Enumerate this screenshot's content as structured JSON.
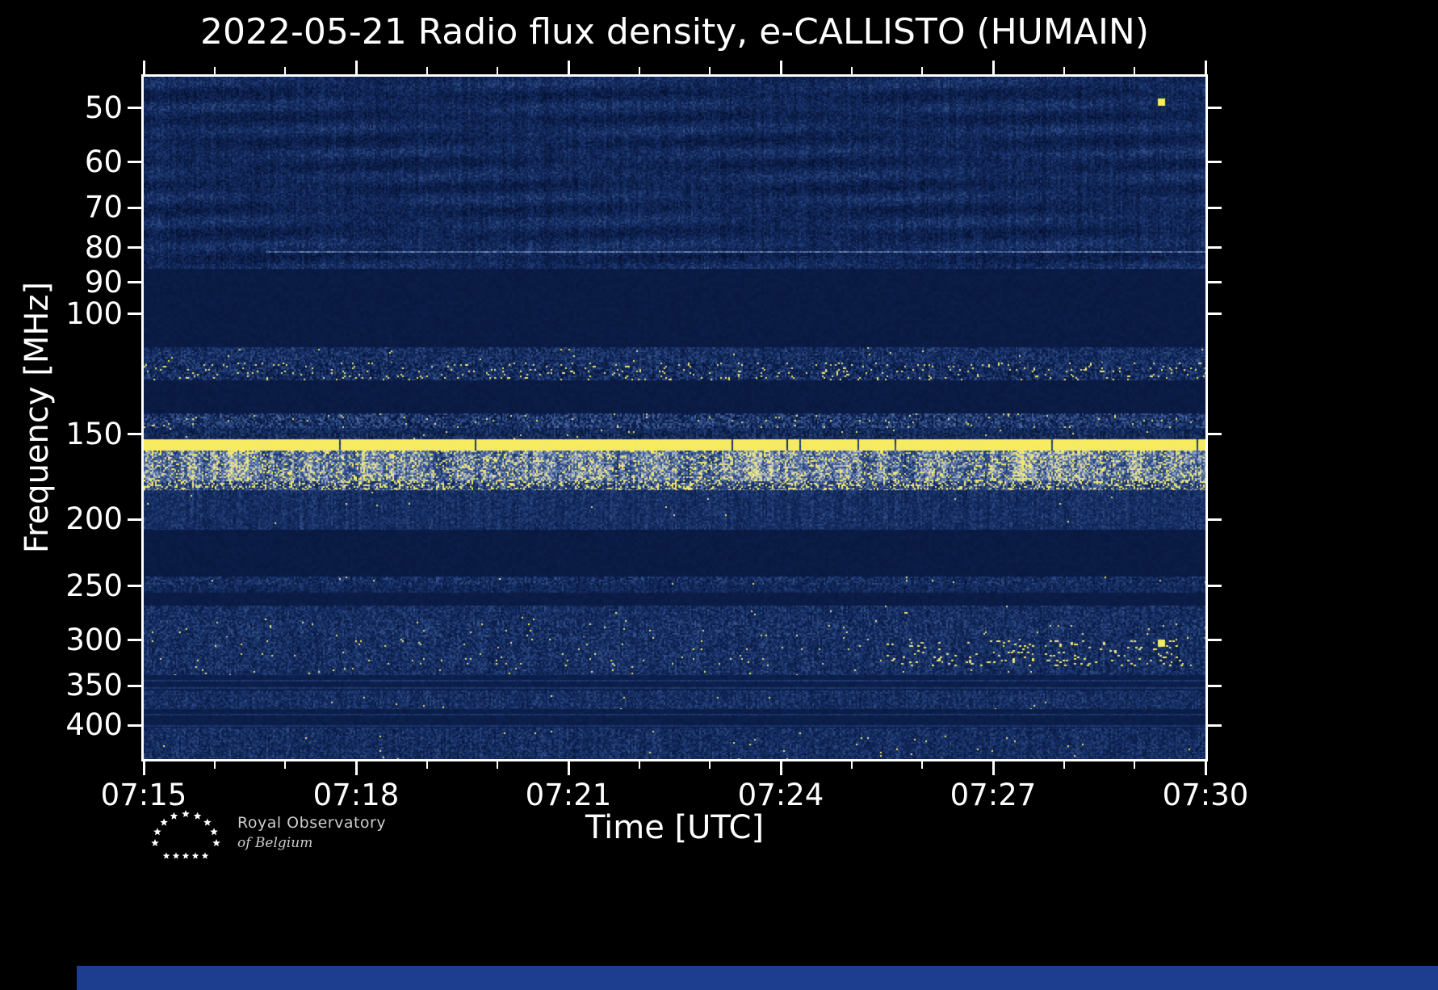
{
  "title": "2022-05-21 Radio flux density, e-CALLISTO (HUMAIN)",
  "axes": {
    "xlabel": "Time [UTC]",
    "ylabel": "Frequency [MHz]"
  },
  "logo": {
    "line1": "Royal Observatory",
    "line2": "of Belgium"
  },
  "colors": {
    "background": "#000000",
    "frame": "#ffffff",
    "text": "#ffffff",
    "plot_base_blue": "#0a1f4e",
    "signal_yellow": "#f6e85c",
    "bottom_strip_blue": "#1d3e8f",
    "logo_text_gray": "#cccccc"
  },
  "chart_data": {
    "type": "heatmap",
    "title": "2022-05-21 Radio flux density, e-CALLISTO (HUMAIN)",
    "xlabel": "Time [UTC]",
    "ylabel": "Frequency [MHz]",
    "x_ticks": [
      "07:15",
      "07:18",
      "07:21",
      "07:24",
      "07:27",
      "07:30"
    ],
    "x_minor_interval_minutes": 1,
    "time_range_utc": [
      "07:15",
      "07:30"
    ],
    "y_scale": "log",
    "y_axis_inverted": true,
    "y_ticks": [
      50,
      60,
      70,
      80,
      90,
      100,
      150,
      200,
      250,
      300,
      350,
      400
    ],
    "freq_range_mhz": [
      45,
      448
    ],
    "colormap_description": "dark navy blue (low flux) via light blue to bright yellow (high flux)",
    "legend": "none",
    "grid": false,
    "bands": [
      {
        "f": [
          45,
          86
        ],
        "kind": "textured",
        "base": 0.2,
        "var": 0.14,
        "desc": "broad weak noise with wavy striations 45-86 MHz"
      },
      {
        "f": [
          86,
          112
        ],
        "kind": "flat",
        "base": 0.09,
        "desc": "quiet dark band"
      },
      {
        "f": [
          112,
          118
        ],
        "kind": "noise",
        "base": 0.26,
        "var": 0.18,
        "yellow": 0.004,
        "desc": "narrow noise band"
      },
      {
        "f": [
          118,
          125
        ],
        "kind": "noise",
        "base": 0.24,
        "var": 0.22,
        "yellow": 0.05,
        "desc": "airband RFI with yellow bursts"
      },
      {
        "f": [
          125,
          140
        ],
        "kind": "flat",
        "base": 0.09,
        "desc": "quiet dark band"
      },
      {
        "f": [
          140,
          147
        ],
        "kind": "noise",
        "base": 0.3,
        "var": 0.26,
        "yellow": 0.012,
        "desc": "speckled noise band"
      },
      {
        "f": [
          147,
          152
        ],
        "kind": "noise",
        "base": 0.22,
        "var": 0.18,
        "yellow": 0.004
      },
      {
        "f": [
          152.5,
          158.5
        ],
        "kind": "bright",
        "base": 0.95,
        "desc": "strong continuous bright yellow emission line ~155-158 MHz"
      },
      {
        "f": [
          158.5,
          176
        ],
        "kind": "hot",
        "base": 0.52,
        "var": 0.3,
        "yellow": 0.15,
        "desc": "broad bright patchy band, pale blue/white with yellow bursts"
      },
      {
        "f": [
          176,
          181
        ],
        "kind": "noise",
        "base": 0.4,
        "var": 0.26,
        "yellow": 0.22,
        "desc": "dense yellow dashed RFI line"
      },
      {
        "f": [
          181,
          207
        ],
        "kind": "noise",
        "base": 0.27,
        "var": 0.13,
        "yellow": 0.001,
        "desc": "uniform medium blue noise"
      },
      {
        "f": [
          207,
          242
        ],
        "kind": "flat",
        "base": 0.09,
        "desc": "quiet dark band"
      },
      {
        "f": [
          242,
          249
        ],
        "kind": "noise",
        "base": 0.25,
        "var": 0.18,
        "yellow": 0.003
      },
      {
        "f": [
          249,
          256
        ],
        "kind": "noise",
        "base": 0.22,
        "var": 0.14
      },
      {
        "f": [
          256,
          267
        ],
        "kind": "flat",
        "base": 0.1
      },
      {
        "f": [
          267,
          281
        ],
        "kind": "noise",
        "base": 0.26,
        "var": 0.16,
        "yellow": 0.002
      },
      {
        "f": [
          281,
          297
        ],
        "kind": "noise",
        "base": 0.27,
        "var": 0.18,
        "yellow": 0.006,
        "desc": "noise band around 300 MHz tick"
      },
      {
        "f": [
          297,
          338
        ],
        "kind": "noise",
        "base": 0.26,
        "var": 0.17,
        "yellow": 0.008,
        "desc": "broad noise band with scattered yellow speckles"
      },
      {
        "f": [
          338,
          356
        ],
        "kind": "flatlines",
        "base": 0.13,
        "lines": [
          343,
          352
        ]
      },
      {
        "f": [
          356,
          378
        ],
        "kind": "noise",
        "base": 0.26,
        "var": 0.15,
        "yellow": 0.002
      },
      {
        "f": [
          378,
          403
        ],
        "kind": "flatlines",
        "base": 0.12,
        "lines": [
          385,
          400
        ]
      },
      {
        "f": [
          403,
          448
        ],
        "kind": "noise",
        "base": 0.25,
        "var": 0.16,
        "yellow": 0.003,
        "desc": "bottom noise band to plot edge"
      }
    ],
    "features": [
      {
        "kind": "line",
        "f": 81,
        "x0": 0.115,
        "x1": 1.0,
        "v": 0.5,
        "desc": "faint pale horizontal line at ~81 MHz starting ~07:16.7"
      },
      {
        "kind": "dot",
        "f": 49,
        "x": 0.958,
        "v": 1.0,
        "desc": "bright yellow point near 49 MHz at ~07:29.4"
      },
      {
        "kind": "patch",
        "f": [
          300,
          328
        ],
        "x0": 0.7,
        "x1": 0.98,
        "yellow": 0.045,
        "desc": "cluster of yellow speckles 300-328 MHz in last third"
      },
      {
        "kind": "dot",
        "f": 303,
        "x": 0.958,
        "v": 0.95,
        "desc": "bright yellow point near 303 MHz at ~07:29.4"
      }
    ],
    "notes": "e-CALLISTO HUMAIN dynamic spectrum; persistent horizontal RFI bands; quiet dark bands at 86-112, 125-140 and 207-242 MHz; strongest continuous band near 155 MHz."
  }
}
